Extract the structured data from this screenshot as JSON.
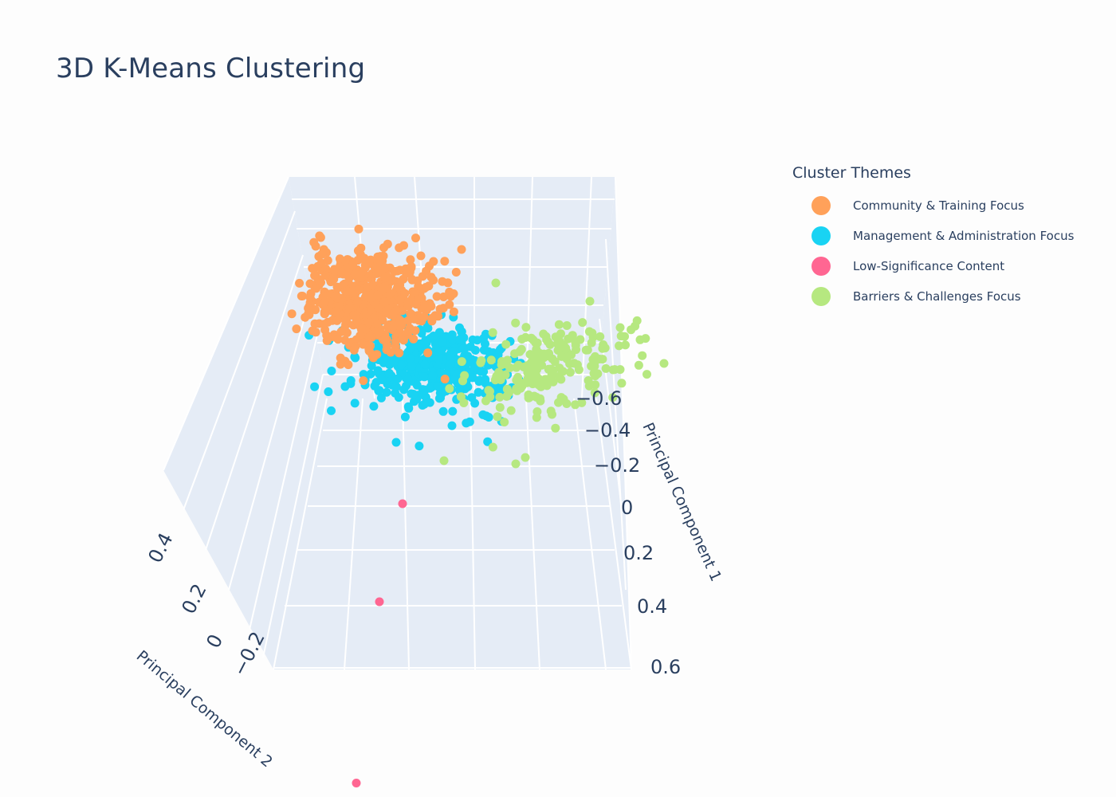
{
  "chart_data": {
    "type": "scatter3d",
    "title": "3D K-Means Clustering",
    "legend_title": "Cluster Themes",
    "legend_position": "top-right",
    "x_axis": {
      "title": "Principal Component 1",
      "range": [
        -0.6,
        0.6
      ],
      "ticks": [
        "−0.6",
        "−0.4",
        "−0.2",
        "0",
        "0.2",
        "0.4",
        "0.6"
      ]
    },
    "y_axis": {
      "title": "Principal Component 2",
      "range": [
        -0.2,
        0.4
      ],
      "ticks": [
        "0.4",
        "0.2",
        "0",
        "−0.2"
      ]
    },
    "series": [
      {
        "name": "Community & Training Focus",
        "color": "#FFA15A",
        "approx_count": 900,
        "centroid_pc1": -0.55,
        "centroid_pc2": 0.32,
        "spread": 0.08
      },
      {
        "name": "Management & Administration Focus",
        "color": "#19D3F3",
        "approx_count": 700,
        "centroid_pc1": -0.5,
        "centroid_pc2": 0.05,
        "spread": 0.09
      },
      {
        "name": "Low-Significance Content",
        "color": "#FF6692",
        "approx_count": 3,
        "points": [
          {
            "pc1": 0.03,
            "pc2": 0.08
          },
          {
            "pc1": 0.13,
            "pc2": 0.08
          },
          {
            "pc1": 0.23,
            "pc2": 0.13
          }
        ]
      },
      {
        "name": "Barriers & Challenges Focus",
        "color": "#B6E880",
        "approx_count": 300,
        "centroid_pc1": -0.6,
        "centroid_pc2": -0.18,
        "spread": 0.1
      }
    ]
  }
}
